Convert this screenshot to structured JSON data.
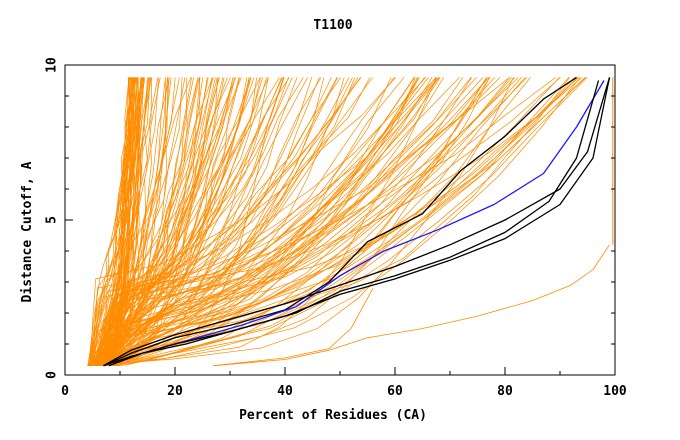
{
  "chart_data": {
    "type": "line",
    "title": "T1100",
    "xlabel": "Percent of Residues (CA)",
    "ylabel": "Distance Cutoff, A",
    "xlim": [
      0,
      100
    ],
    "ylim": [
      0,
      10
    ],
    "x_ticks": [
      "0",
      "20",
      "40",
      "60",
      "80",
      "100"
    ],
    "y_ticks": [
      "0",
      "5",
      "10"
    ],
    "grid": false,
    "legend": "none",
    "colors": {
      "orange": "#ff8c00",
      "black": "#000000",
      "blue": "#1a1aff"
    },
    "series": [
      {
        "color": "#000000",
        "x": [
          7,
          12,
          20,
          30,
          40,
          48,
          55,
          65,
          72,
          80,
          87,
          93
        ],
        "y": [
          0.3,
          0.7,
          1.2,
          1.6,
          2.1,
          3.0,
          4.3,
          5.2,
          6.6,
          7.7,
          8.9,
          9.6
        ]
      },
      {
        "color": "#1a1aff",
        "x": [
          8,
          14,
          22,
          32,
          42,
          50,
          58,
          68,
          78,
          87,
          93,
          98
        ],
        "y": [
          0.3,
          0.7,
          1.1,
          1.6,
          2.2,
          3.2,
          4.0,
          4.7,
          5.5,
          6.5,
          8.0,
          9.5
        ]
      },
      {
        "color": "#000000",
        "x": [
          7,
          12,
          20,
          30,
          40,
          50,
          60,
          70,
          80,
          90,
          95,
          99
        ],
        "y": [
          0.3,
          0.8,
          1.3,
          1.8,
          2.3,
          2.9,
          3.5,
          4.2,
          5.0,
          6.0,
          7.2,
          9.6
        ]
      },
      {
        "color": "#000000",
        "x": [
          8,
          14,
          22,
          32,
          42,
          50,
          60,
          70,
          80,
          88,
          93,
          97
        ],
        "y": [
          0.3,
          0.7,
          1.0,
          1.5,
          2.0,
          2.7,
          3.2,
          3.8,
          4.6,
          5.6,
          7.0,
          9.5
        ]
      },
      {
        "color": "#000000",
        "x": [
          7,
          12,
          20,
          30,
          40,
          50,
          60,
          70,
          80,
          90,
          96,
          99
        ],
        "y": [
          0.3,
          0.6,
          1.0,
          1.4,
          1.9,
          2.6,
          3.1,
          3.7,
          4.4,
          5.5,
          7.0,
          9.6
        ]
      },
      {
        "color": "#ff8c00",
        "x": [
          27,
          40,
          48,
          55,
          65,
          75,
          85,
          92,
          96,
          99
        ],
        "y": [
          0.3,
          0.5,
          0.8,
          1.2,
          1.5,
          1.9,
          2.4,
          2.9,
          3.4,
          4.2
        ]
      },
      {
        "color": "#ff8c00",
        "x": [
          27,
          40,
          48,
          52,
          56
        ],
        "y": [
          0.3,
          0.55,
          0.85,
          1.5,
          2.8
        ]
      }
    ],
    "orange_bundle_count": 200
  }
}
